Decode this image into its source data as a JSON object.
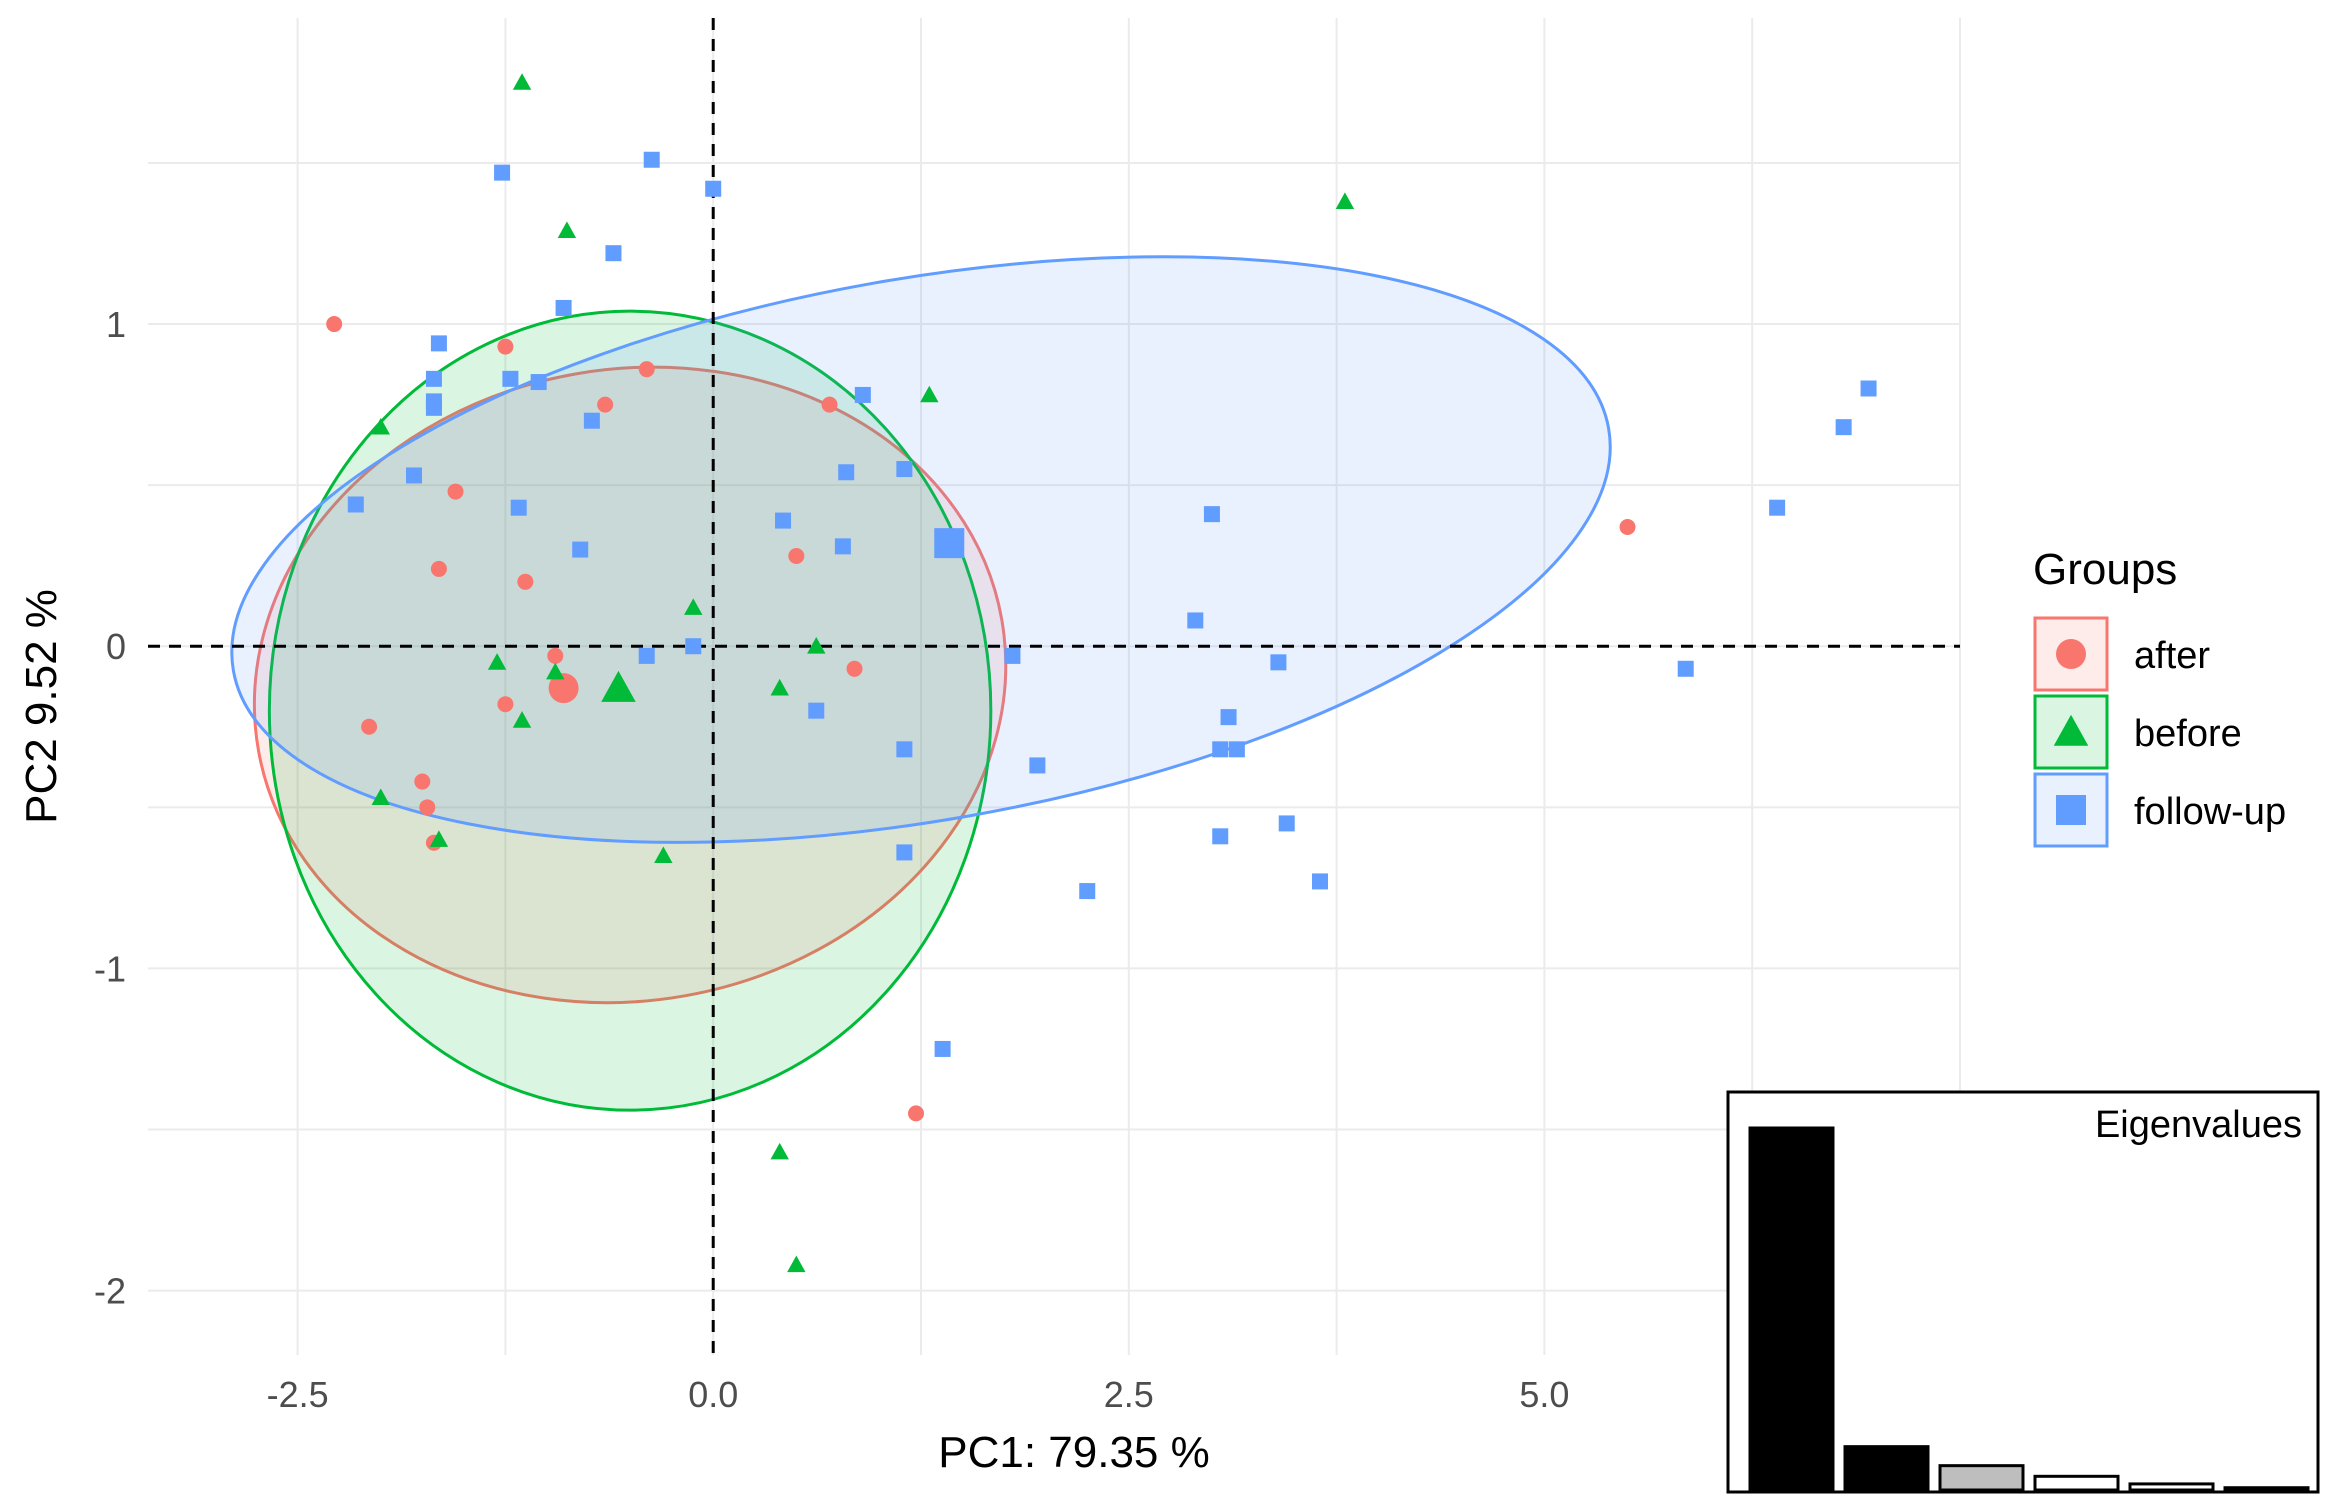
{
  "chart_data": {
    "type": "scatter",
    "title": "",
    "xlabel": "PC1:  79.35 %",
    "ylabel": "PC2  9.52 %",
    "xlim": [
      -3.4,
      7.5
    ],
    "ylim": [
      -2.2,
      1.95
    ],
    "x_ticks": [
      -2.5,
      0.0,
      2.5,
      5.0
    ],
    "x_tick_labels": [
      "-2.5",
      "0.0",
      "2.5",
      "5.0"
    ],
    "y_ticks": [
      -2,
      -1,
      0,
      1
    ],
    "y_tick_labels": [
      "-2",
      "-1",
      "0",
      "1"
    ],
    "grid": true,
    "reference_lines": {
      "x": 0,
      "y": 0,
      "style": "dashed"
    },
    "legend": {
      "title": "Groups",
      "position": "right"
    },
    "series": [
      {
        "name": "after",
        "marker": "circle",
        "color": "#F8766D",
        "points": [
          [
            -2.28,
            1.0
          ],
          [
            -1.25,
            0.93
          ],
          [
            -0.4,
            0.86
          ],
          [
            -0.65,
            0.75
          ],
          [
            -1.55,
            0.48
          ],
          [
            -1.65,
            0.24
          ],
          [
            -1.13,
            0.2
          ],
          [
            -0.95,
            -0.03
          ],
          [
            0.5,
            0.28
          ],
          [
            0.7,
            0.75
          ],
          [
            0.85,
            -0.07
          ],
          [
            -1.25,
            -0.18
          ],
          [
            -2.07,
            -0.25
          ],
          [
            -1.75,
            -0.42
          ],
          [
            -1.72,
            -0.5
          ],
          [
            -1.68,
            -0.61
          ],
          [
            1.22,
            -1.45
          ],
          [
            5.5,
            0.37
          ]
        ],
        "centroid": [
          -0.9,
          -0.13
        ],
        "ellipse": {
          "cx": -0.5,
          "cy": -0.12,
          "rx": 2.27,
          "ry": 0.98,
          "angle_deg": -10
        }
      },
      {
        "name": "before",
        "marker": "triangle",
        "color": "#00BA38",
        "points": [
          [
            -1.15,
            1.75
          ],
          [
            -0.88,
            1.29
          ],
          [
            -2.0,
            0.68
          ],
          [
            1.3,
            0.78
          ],
          [
            3.8,
            1.38
          ],
          [
            -1.3,
            -0.05
          ],
          [
            -0.95,
            -0.08
          ],
          [
            -1.15,
            -0.23
          ],
          [
            -2.0,
            -0.47
          ],
          [
            -1.65,
            -0.6
          ],
          [
            -0.3,
            -0.65
          ],
          [
            -0.12,
            0.12
          ],
          [
            0.4,
            -0.13
          ],
          [
            0.62,
            0.0
          ],
          [
            0.4,
            -1.57
          ],
          [
            0.5,
            -1.92
          ]
        ],
        "centroid": [
          -0.57,
          -0.13
        ],
        "ellipse": {
          "cx": -0.5,
          "cy": -0.2,
          "rx": 2.17,
          "ry": 1.24,
          "angle_deg": 0
        }
      },
      {
        "name": "follow-up",
        "marker": "square",
        "color": "#619CFF",
        "points": [
          [
            -1.27,
            1.47
          ],
          [
            -0.37,
            1.51
          ],
          [
            0.0,
            1.42
          ],
          [
            -0.6,
            1.22
          ],
          [
            -0.9,
            1.05
          ],
          [
            -1.65,
            0.94
          ],
          [
            -1.68,
            0.83
          ],
          [
            -1.68,
            0.76
          ],
          [
            -1.68,
            0.74
          ],
          [
            -1.22,
            0.83
          ],
          [
            -1.05,
            0.82
          ],
          [
            -0.73,
            0.7
          ],
          [
            0.9,
            0.78
          ],
          [
            -1.8,
            0.53
          ],
          [
            -2.15,
            0.44
          ],
          [
            -1.17,
            0.43
          ],
          [
            -0.8,
            0.3
          ],
          [
            0.42,
            0.39
          ],
          [
            0.78,
            0.31
          ],
          [
            0.8,
            0.54
          ],
          [
            1.15,
            0.55
          ],
          [
            1.42,
            0.32
          ],
          [
            -0.4,
            -0.03
          ],
          [
            -0.12,
            0.0
          ],
          [
            0.62,
            -0.2
          ],
          [
            1.15,
            -0.32
          ],
          [
            1.15,
            -0.64
          ],
          [
            1.38,
            -1.25
          ],
          [
            1.8,
            -0.03
          ],
          [
            1.95,
            -0.37
          ],
          [
            2.25,
            -0.76
          ],
          [
            2.9,
            0.08
          ],
          [
            3.0,
            0.41
          ],
          [
            3.05,
            -0.32
          ],
          [
            3.1,
            -0.22
          ],
          [
            3.15,
            -0.32
          ],
          [
            3.05,
            -0.59
          ],
          [
            3.4,
            -0.05
          ],
          [
            3.45,
            -0.55
          ],
          [
            3.65,
            -0.73
          ],
          [
            5.85,
            -0.07
          ],
          [
            6.4,
            0.43
          ],
          [
            6.8,
            0.68
          ],
          [
            6.95,
            0.8
          ]
        ],
        "centroid": [
          1.42,
          0.32
        ],
        "ellipse": {
          "cx": 1.25,
          "cy": 0.3,
          "rx": 4.2,
          "ry": 0.84,
          "angle_deg": -10
        }
      }
    ],
    "inset": {
      "type": "bar",
      "title": "Eigenvalues",
      "values": [
        4.76,
        0.57,
        0.32,
        0.18,
        0.08,
        0.03
      ],
      "fills": [
        "#000000",
        "#000000",
        "#bebebe",
        "#ffffff",
        "#ffffff",
        "#000000"
      ]
    }
  }
}
